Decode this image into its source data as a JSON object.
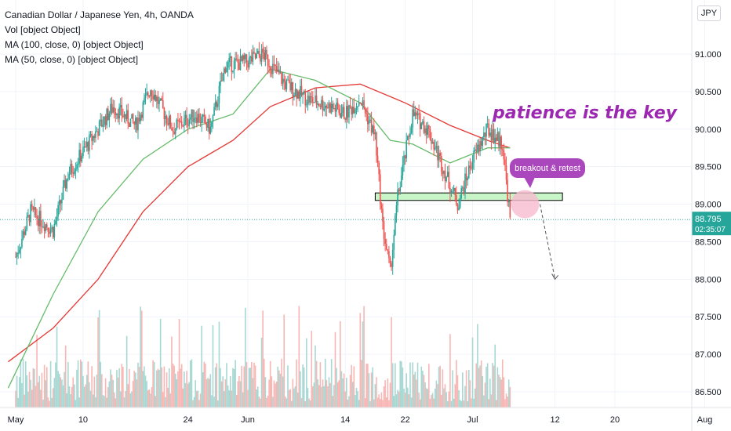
{
  "legend": {
    "title": "Canadian Dollar / Japanese Yen, 4h, OANDA",
    "vol": "Vol [object Object]",
    "ma100": "MA (100, close, 0) [object Object]",
    "ma50": "MA (50, close, 0) [object Object]"
  },
  "currency": "JPY",
  "price_label": "88.795",
  "countdown_label": "02:35:07",
  "annotation_text": "patience is the key",
  "callout_text": "breakout & retest",
  "colors": {
    "up": "#26a69a",
    "down": "#ef5350",
    "ma50": "#66bb6a",
    "ma100": "#e53935",
    "annotation": "#9c27b0",
    "callout": "#ab47bc",
    "zone": "#c8f5c8",
    "price_line": "#26a69a"
  },
  "chart_data": {
    "type": "candlestick",
    "symbol": "CADJPY",
    "title": "Canadian Dollar / Japanese Yen, 4h, OANDA",
    "timeframe": "4h",
    "y_ticks": [
      "91.000",
      "90.500",
      "90.000",
      "89.500",
      "89.000",
      "88.500",
      "88.000",
      "87.500",
      "87.000",
      "86.500"
    ],
    "ylim": [
      86.35,
      91.25
    ],
    "x_ticks": [
      "May",
      "10",
      "24",
      "Jun",
      "14",
      "22",
      "Jul",
      "12",
      "20",
      "Aug"
    ],
    "last_price": 88.795,
    "price_path": [
      {
        "x": "May 1",
        "y": 88.3
      },
      {
        "x": "May 3",
        "y": 88.9
      },
      {
        "x": "May 6",
        "y": 88.65
      },
      {
        "x": "May 8",
        "y": 89.4
      },
      {
        "x": "May 11",
        "y": 89.85
      },
      {
        "x": "May 14",
        "y": 90.3
      },
      {
        "x": "May 17",
        "y": 90.05
      },
      {
        "x": "May 19",
        "y": 90.55
      },
      {
        "x": "May 22",
        "y": 90.0
      },
      {
        "x": "May 25",
        "y": 90.2
      },
      {
        "x": "May 27",
        "y": 90.0
      },
      {
        "x": "May 29",
        "y": 90.85
      },
      {
        "x": "Jun 1",
        "y": 90.9
      },
      {
        "x": "Jun 3",
        "y": 91.0
      },
      {
        "x": "Jun 6",
        "y": 90.6
      },
      {
        "x": "Jun 9",
        "y": 90.4
      },
      {
        "x": "Jun 12",
        "y": 90.3
      },
      {
        "x": "Jun 14",
        "y": 90.2
      },
      {
        "x": "Jun 16",
        "y": 90.4
      },
      {
        "x": "Jun 18",
        "y": 89.9
      },
      {
        "x": "Jun 19",
        "y": 88.7
      },
      {
        "x": "Jun 20",
        "y": 88.1
      },
      {
        "x": "Jun 21",
        "y": 89.1
      },
      {
        "x": "Jun 23",
        "y": 90.2
      },
      {
        "x": "Jun 25",
        "y": 90.0
      },
      {
        "x": "Jun 27",
        "y": 89.5
      },
      {
        "x": "Jun 29",
        "y": 89.0
      },
      {
        "x": "Jul 1",
        "y": 89.6
      },
      {
        "x": "Jul 3",
        "y": 90.0
      },
      {
        "x": "Jul 5",
        "y": 89.8
      },
      {
        "x": "Jul 6",
        "y": 88.8
      }
    ],
    "ma50": [
      {
        "x": "Apr 30",
        "y": 86.55
      },
      {
        "x": "May 6",
        "y": 87.8
      },
      {
        "x": "May 12",
        "y": 88.9
      },
      {
        "x": "May 18",
        "y": 89.6
      },
      {
        "x": "May 24",
        "y": 90.0
      },
      {
        "x": "May 30",
        "y": 90.2
      },
      {
        "x": "Jun 4",
        "y": 90.8
      },
      {
        "x": "Jun 10",
        "y": 90.65
      },
      {
        "x": "Jun 16",
        "y": 90.35
      },
      {
        "x": "Jun 20",
        "y": 89.85
      },
      {
        "x": "Jun 23",
        "y": 89.8
      },
      {
        "x": "Jun 28",
        "y": 89.55
      },
      {
        "x": "Jul 3",
        "y": 89.75
      },
      {
        "x": "Jul 6",
        "y": 89.75
      }
    ],
    "ma100": [
      {
        "x": "Apr 30",
        "y": 86.9
      },
      {
        "x": "May 6",
        "y": 87.35
      },
      {
        "x": "May 12",
        "y": 88.0
      },
      {
        "x": "May 18",
        "y": 88.9
      },
      {
        "x": "May 24",
        "y": 89.5
      },
      {
        "x": "May 30",
        "y": 89.85
      },
      {
        "x": "Jun 4",
        "y": 90.3
      },
      {
        "x": "Jun 10",
        "y": 90.55
      },
      {
        "x": "Jun 16",
        "y": 90.6
      },
      {
        "x": "Jun 22",
        "y": 90.35
      },
      {
        "x": "Jun 28",
        "y": 90.05
      },
      {
        "x": "Jul 3",
        "y": 89.85
      },
      {
        "x": "Jul 6",
        "y": 89.75
      }
    ],
    "zone": {
      "from": "Jun 18",
      "to": "Jul 13",
      "low": 89.05,
      "high": 89.15
    },
    "projection": [
      {
        "x": "Jul 10",
        "y": 89.0
      },
      {
        "x": "Jul 12",
        "y": 88.0
      }
    ],
    "grid": true,
    "legend_position": "top-left"
  }
}
